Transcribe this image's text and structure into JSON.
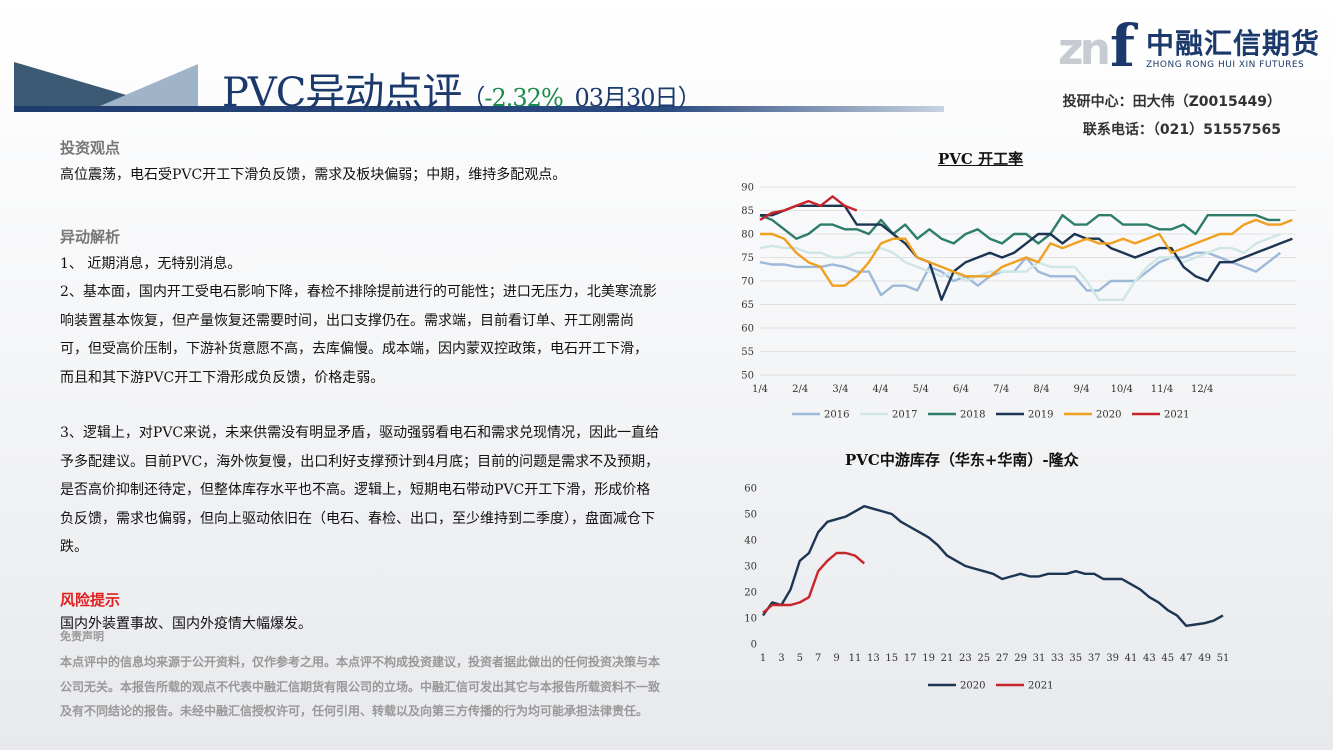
{
  "header": {
    "title_main": "PVC异动点评",
    "paren_open": "（",
    "change_pct": "-2.32%",
    "date": "03月30日",
    "paren_close": "）"
  },
  "logo": {
    "mark_zn": "zn",
    "mark_f": "f",
    "name_cn": "中融汇信期货",
    "name_en": "ZHONG RONG HUI XIN FUTURES"
  },
  "contact": {
    "analyst": "投研中心：田大伟（Z0015449）",
    "phone": "联系电话：（021）51557565"
  },
  "view": {
    "heading": "投资观点",
    "text": "高位震荡，电石受PVC开工下滑负反馈，需求及板块偏弱；中期，维持多配观点。"
  },
  "analysis": {
    "heading": "异动解析",
    "p1": "1、  近期消息，无特别消息。",
    "p2": "2、基本面，国内开工受电石影响下降，春检不排除提前进行的可能性；进口无压力，北美寒流影响装置基本恢复，但产量恢复还需要时间，出口支撑仍在。需求端，目前看订单、开工刚需尚可，但受高价压制，下游补货意愿不高，去库偏慢。成本端，因内蒙双控政策，电石开工下滑，而且和其下游PVC开工下滑形成负反馈，价格走弱。",
    "p3": "3、逻辑上，对PVC来说，未来供需没有明显矛盾，驱动强弱看电石和需求兑现情况，因此一直给予多配建议。目前PVC，海外恢复慢，出口利好支撑预计到4月底；目前的问题是需求不及预期，是否高价抑制还待定，但整体库存水平也不高。逻辑上，短期电石带动PVC开工下滑，形成价格负反馈，需求也偏弱，但向上驱动依旧在（电石、春检、出口，至少维持到二季度），盘面减仓下跌。"
  },
  "risk": {
    "heading": "风险提示",
    "text": "国内外装置事故、国内外疫情大幅爆发。"
  },
  "disclaimer": {
    "heading": "免责声明",
    "text": "本点评中的信息均来源于公开资料，仅作参考之用。本点评不构成投资建议，投资者据此做出的任何投资决策与本公司无关。本报告所载的观点不代表中融汇信期货有限公司的立场。中融汇信可发出其它与本报告所载资料不一致及有不同结论的报告。未经中融汇信授权许可，任何引用、转载以及向第三方传播的行为均可能承担法律责任。"
  },
  "chart_data": [
    {
      "type": "line",
      "title": "PVC 开工率",
      "xlabel": "",
      "ylabel": "",
      "ylim": [
        50,
        90
      ],
      "yticks": [
        "90",
        "85",
        "80",
        "75",
        "70",
        "65",
        "60",
        "55",
        "50"
      ],
      "x_ticks": [
        "1/4",
        "2/4",
        "3/4",
        "4/4",
        "5/4",
        "6/4",
        "7/4",
        "8/4",
        "9/4",
        "10/4",
        "11/4",
        "12/4"
      ],
      "legend_position": "bottom",
      "grid": true,
      "series": [
        {
          "name": "2016",
          "color": "#9cb9d9",
          "values": [
            74,
            73.5,
            73.5,
            73,
            73,
            73,
            73.5,
            73,
            72,
            72,
            67,
            69,
            69,
            68,
            73,
            72,
            70,
            71,
            69,
            71,
            72,
            72,
            75,
            72,
            71,
            71,
            71,
            68,
            68,
            70,
            70,
            70,
            72,
            74,
            75,
            75,
            76,
            76,
            75,
            74,
            73,
            72,
            74,
            76
          ]
        },
        {
          "name": "2017",
          "color": "#cfe7e4",
          "values": [
            77,
            77.5,
            77,
            77,
            76,
            76,
            75,
            75,
            76,
            76,
            77,
            76,
            74,
            73,
            72,
            71,
            72,
            70,
            71,
            72,
            72,
            72,
            72,
            74,
            73,
            73,
            73,
            70,
            66,
            66,
            66,
            70,
            73,
            75,
            75,
            74,
            75,
            76,
            77,
            77,
            76,
            78,
            79,
            80
          ]
        },
        {
          "name": "2018",
          "color": "#2e7d6b",
          "values": [
            84,
            83,
            81,
            79,
            80,
            82,
            82,
            81,
            81,
            80,
            83,
            80,
            82,
            79,
            81,
            79,
            78,
            80,
            81,
            79,
            78,
            80,
            80,
            78,
            80,
            84,
            82,
            82,
            84,
            84,
            82,
            82,
            82,
            81,
            81,
            82,
            80,
            84,
            84,
            84,
            84,
            84,
            83,
            83
          ]
        },
        {
          "name": "2019",
          "color": "#1c3552",
          "values": [
            84,
            84,
            85,
            86,
            86,
            86,
            86,
            86,
            82,
            82,
            82,
            80,
            78,
            75,
            74,
            66,
            72,
            74,
            75,
            76,
            75,
            76,
            78,
            80,
            80,
            78,
            80,
            79,
            79,
            77,
            76,
            75,
            76,
            77,
            77,
            73,
            71,
            70,
            74,
            74,
            75,
            76,
            77,
            78,
            79
          ]
        },
        {
          "name": "2020",
          "color": "#f0a020",
          "values": [
            80,
            80,
            79,
            76,
            74,
            73,
            69,
            69,
            71,
            74,
            78,
            79,
            79,
            75,
            74,
            73,
            72,
            71,
            71,
            71,
            73,
            74,
            75,
            74,
            78,
            77,
            78,
            79,
            78,
            78,
            79,
            78,
            79,
            80,
            76,
            77,
            78,
            79,
            80,
            80,
            82,
            83,
            82,
            82,
            83
          ]
        },
        {
          "name": "2021",
          "color": "#c8242b",
          "values": [
            83,
            84.5,
            85,
            86,
            87,
            86,
            88,
            86,
            85
          ]
        }
      ]
    },
    {
      "type": "line",
      "title": "PVC中游库存（华东+华南）-隆众",
      "xlabel": "",
      "ylabel": "",
      "ylim": [
        0,
        60
      ],
      "yticks": [
        "60",
        "50",
        "40",
        "30",
        "20",
        "10",
        "0"
      ],
      "x_ticks": [
        "1",
        "3",
        "5",
        "7",
        "9",
        "11",
        "13",
        "15",
        "17",
        "19",
        "21",
        "23",
        "25",
        "27",
        "29",
        "31",
        "33",
        "35",
        "37",
        "39",
        "41",
        "43",
        "45",
        "47",
        "49",
        "51"
      ],
      "legend_position": "bottom",
      "grid": false,
      "series": [
        {
          "name": "2020",
          "color": "#1c3552",
          "values": [
            11,
            16,
            15,
            21,
            32,
            35,
            43,
            47,
            48,
            49,
            51,
            53,
            52,
            51,
            50,
            47,
            45,
            43,
            41,
            38,
            34,
            32,
            30,
            29,
            28,
            27,
            25,
            26,
            27,
            26,
            26,
            27,
            27,
            27,
            28,
            27,
            27,
            25,
            25,
            25,
            23,
            21,
            18,
            16,
            13,
            11,
            7,
            7.5,
            8,
            9,
            11
          ]
        },
        {
          "name": "2021",
          "color": "#c8242b",
          "values": [
            12,
            15,
            15,
            15,
            16,
            18,
            28,
            32,
            35,
            35,
            34,
            31
          ]
        }
      ]
    }
  ]
}
